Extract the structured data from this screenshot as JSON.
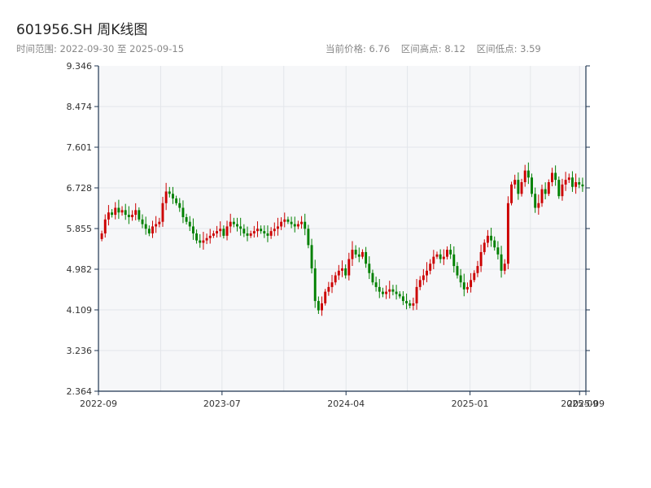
{
  "header": {
    "title": "601956.SH 周K线图",
    "range_label": "时间范围: 2022-09-30 至 2025-09-15",
    "current_price": "当前价格: 6.76",
    "range_high": "区间高点: 8.12",
    "range_low": "区间低点: 3.59"
  },
  "colors": {
    "up": "#cc0000",
    "down": "#008000",
    "plot_bg": "#f6f7f9",
    "grid": "#e3e6ea",
    "axis": "#1f3550"
  },
  "chart_data": {
    "type": "candlestick",
    "title": "601956.SH 周K线图",
    "ylim": [
      2.364,
      9.346
    ],
    "y_ticks": [
      "2.364",
      "3.236",
      "4.109",
      "4.982",
      "5.855",
      "6.728",
      "7.601",
      "8.474",
      "9.346"
    ],
    "x_ticks": [
      {
        "label": "2022-09",
        "date": "2022-09-30"
      },
      {
        "label": "2023-07",
        "date": "2023-07-01"
      },
      {
        "label": "2024-04",
        "date": "2024-04-01"
      },
      {
        "label": "2025-01",
        "date": "2025-01-01"
      },
      {
        "label": "2025-09",
        "date": "2025-09-01"
      },
      {
        "label": "2025-09",
        "date": "2025-09-15"
      }
    ],
    "x_range": [
      "2022-09-30",
      "2025-09-15"
    ],
    "grid": true,
    "last_close": 6.76,
    "range_high": 8.12,
    "range_low": 3.59,
    "closes": [
      5.75,
      6.05,
      6.2,
      6.15,
      6.3,
      6.2,
      6.25,
      6.15,
      6.1,
      6.15,
      6.25,
      6.05,
      5.95,
      5.85,
      5.75,
      5.9,
      5.95,
      6.0,
      6.4,
      6.65,
      6.6,
      6.5,
      6.4,
      6.3,
      6.1,
      6.0,
      5.9,
      5.75,
      5.6,
      5.55,
      5.6,
      5.65,
      5.7,
      5.75,
      5.8,
      5.85,
      5.7,
      5.9,
      6.0,
      5.95,
      5.9,
      5.85,
      5.75,
      5.7,
      5.75,
      5.8,
      5.85,
      5.8,
      5.75,
      5.7,
      5.8,
      5.85,
      5.9,
      6.0,
      6.05,
      6.0,
      5.95,
      5.9,
      5.95,
      6.0,
      5.85,
      5.5,
      5.0,
      4.3,
      4.1,
      4.25,
      4.5,
      4.6,
      4.7,
      4.85,
      4.95,
      5.0,
      4.85,
      5.2,
      5.4,
      5.3,
      5.25,
      5.35,
      5.1,
      4.9,
      4.7,
      4.6,
      4.5,
      4.45,
      4.5,
      4.55,
      4.5,
      4.45,
      4.4,
      4.3,
      4.25,
      4.2,
      4.25,
      4.6,
      4.75,
      4.85,
      4.95,
      5.1,
      5.25,
      5.3,
      5.2,
      5.25,
      5.4,
      5.3,
      5.05,
      4.85,
      4.7,
      4.55,
      4.6,
      4.75,
      4.9,
      5.05,
      5.35,
      5.55,
      5.7,
      5.6,
      5.45,
      5.3,
      4.95,
      5.1,
      6.4,
      6.8,
      6.9,
      6.6,
      6.85,
      7.1,
      6.95,
      6.6,
      6.3,
      6.4,
      6.7,
      6.6,
      6.85,
      7.05,
      6.9,
      6.55,
      6.8,
      6.9,
      6.95,
      6.75,
      6.85,
      6.8,
      6.76
    ]
  }
}
